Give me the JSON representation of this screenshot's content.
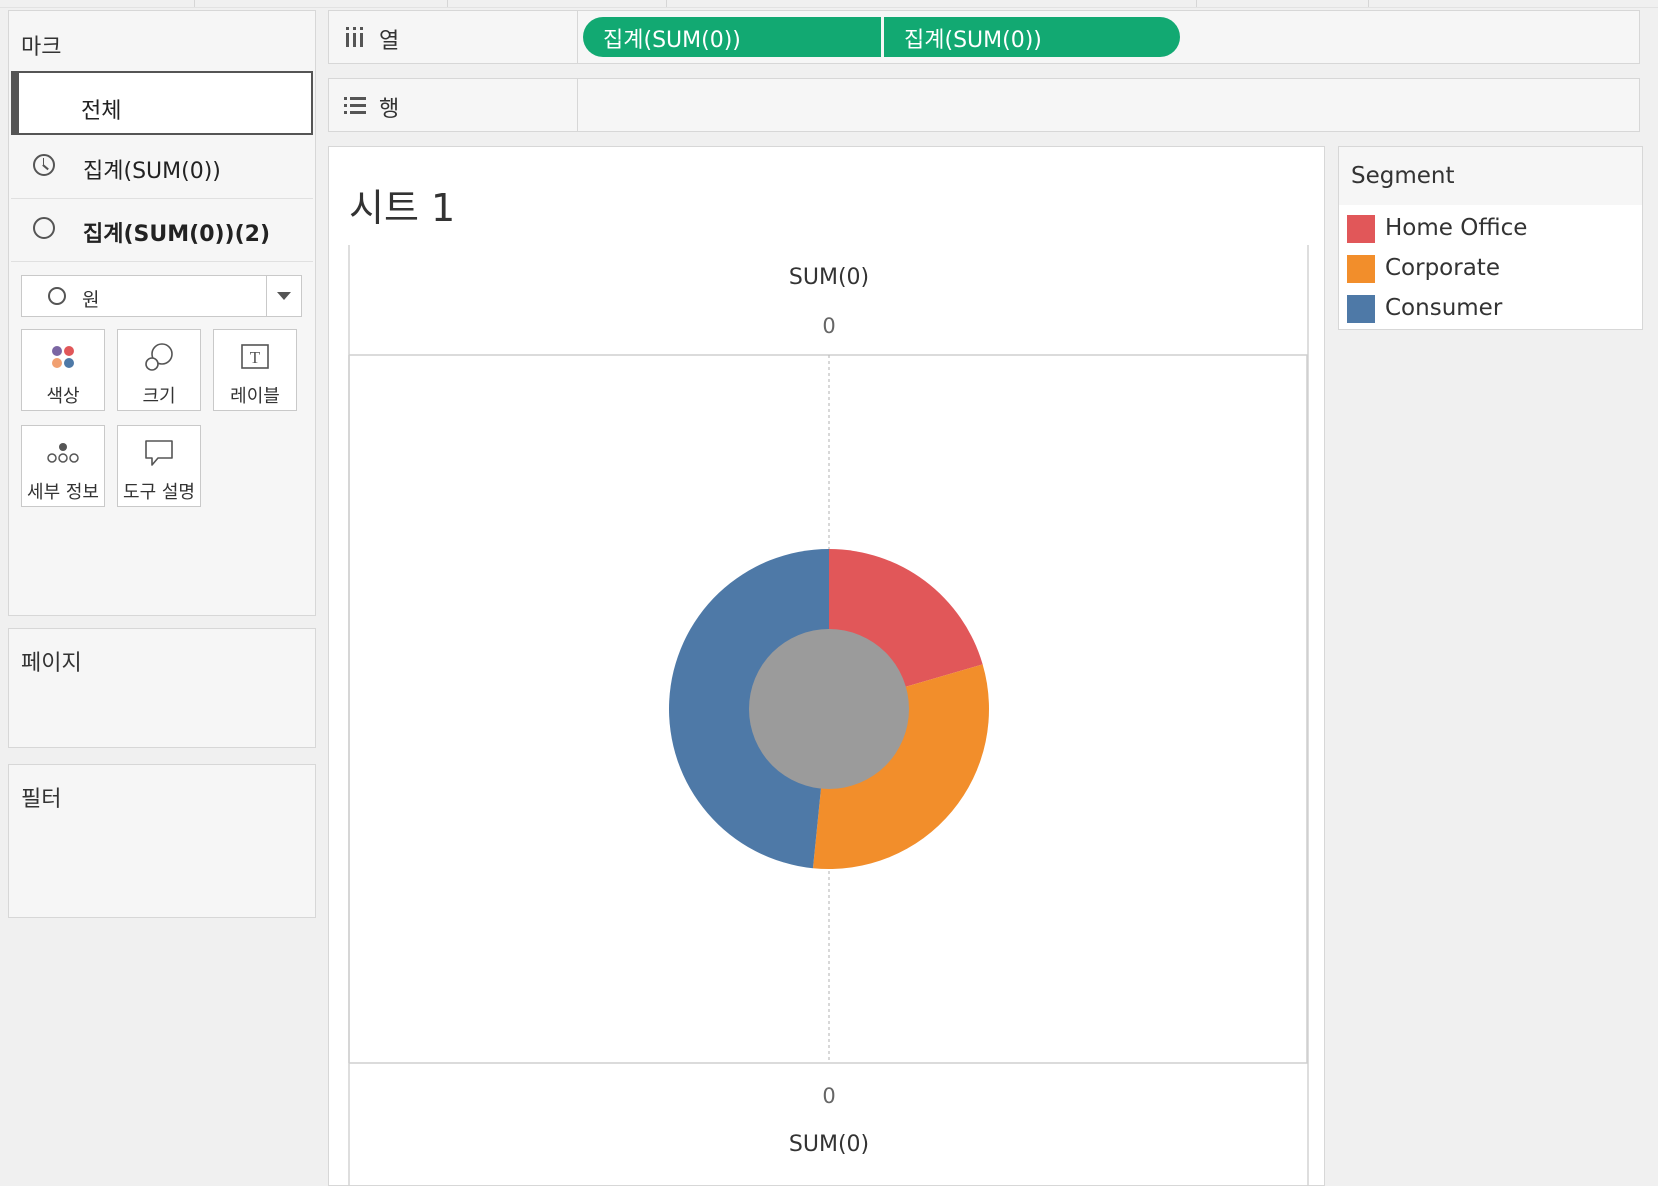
{
  "marks": {
    "title": "마크",
    "tab_all": "전체",
    "tab_1": "집계(SUM(0))",
    "tab_2": "집계(SUM(0))(2)",
    "mark_type": "원",
    "cards": {
      "color": "색상",
      "size": "크기",
      "label": "레이블",
      "detail": "세부 정보",
      "tooltip": "도구 설명"
    }
  },
  "pages": {
    "title": "페이지"
  },
  "filters": {
    "title": "필터"
  },
  "columns": {
    "label": "열",
    "pills": [
      "집계(SUM(0))",
      "집계(SUM(0))"
    ]
  },
  "rows": {
    "label": "행"
  },
  "sheet": {
    "title": "시트 1",
    "top_axis_title": "SUM(0)",
    "top_axis_tick": "0",
    "bottom_axis_tick": "0",
    "bottom_axis_title": "SUM(0)"
  },
  "legend": {
    "title": "Segment",
    "items": [
      {
        "label": "Home Office",
        "color": "#e15759"
      },
      {
        "label": "Corporate",
        "color": "#f28e2b"
      },
      {
        "label": "Consumer",
        "color": "#4e79a7"
      }
    ]
  },
  "chart_data": {
    "type": "pie",
    "categories": [
      "Home Office",
      "Corporate",
      "Consumer"
    ],
    "values": [
      0.205,
      0.311,
      0.484
    ],
    "colors": [
      "#e15759",
      "#f28e2b",
      "#4e79a7"
    ],
    "center_color": "#9b9b9b",
    "title": "시트 1",
    "xlabel": "SUM(0)"
  }
}
